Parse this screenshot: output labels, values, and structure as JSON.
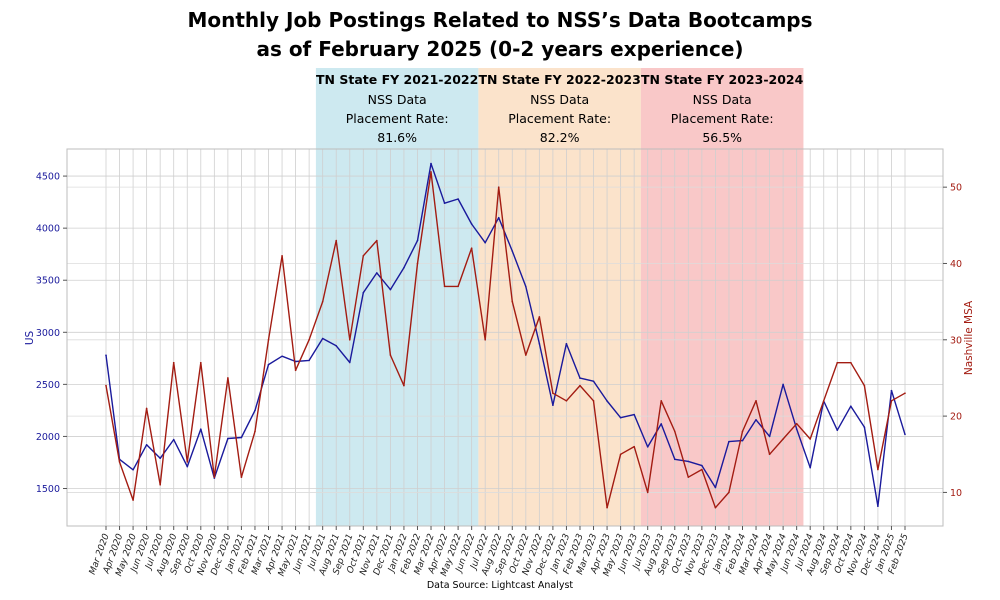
{
  "chart_data": {
    "type": "line",
    "title_line1": "Monthly Job Postings Related to NSS’s Data Bootcamps",
    "title_line2": "as of February 2025 (0-2 years experience)",
    "source": "Data Source: Lightcast Analyst",
    "ylabel_left": "US",
    "ylabel_right": "Nashville MSA",
    "ylim_left": [
      1140,
      4760
    ],
    "ylim_right": [
      5.6,
      55
    ],
    "yticks_left": [
      1500,
      2000,
      2500,
      3000,
      3500,
      4000,
      4500
    ],
    "yticks_right": [
      10,
      20,
      30,
      40,
      50
    ],
    "grid": true,
    "colors": {
      "us": "#1a1a9c",
      "msa": "#a31c12"
    },
    "x": [
      "Mar 2020",
      "Apr 2020",
      "May 2020",
      "Jun 2020",
      "Jul 2020",
      "Aug 2020",
      "Sep 2020",
      "Oct 2020",
      "Nov 2020",
      "Dec 2020",
      "Jan 2021",
      "Feb 2021",
      "Mar 2021",
      "Apr 2021",
      "May 2021",
      "Jun 2021",
      "Jul 2021",
      "Aug 2021",
      "Sep 2021",
      "Oct 2021",
      "Nov 2021",
      "Dec 2021",
      "Jan 2022",
      "Feb 2022",
      "Mar 2022",
      "Apr 2022",
      "May 2022",
      "Jun 2022",
      "Jul 2022",
      "Aug 2022",
      "Sep 2022",
      "Oct 2022",
      "Nov 2022",
      "Dec 2022",
      "Jan 2023",
      "Feb 2023",
      "Mar 2023",
      "Apr 2023",
      "May 2023",
      "Jun 2023",
      "Jul 2023",
      "Aug 2023",
      "Sep 2023",
      "Oct 2023",
      "Nov 2023",
      "Dec 2023",
      "Jan 2024",
      "Feb 2024",
      "Mar 2024",
      "Apr 2024",
      "May 2024",
      "Jun 2024",
      "Jul 2024",
      "Aug 2024",
      "Sep 2024",
      "Oct 2024",
      "Nov 2024",
      "Dec 2024",
      "Jan 2025",
      "Feb 2025"
    ],
    "series": [
      {
        "name": "US",
        "axis": "left",
        "values": [
          2780,
          1780,
          1680,
          1920,
          1790,
          1970,
          1710,
          2070,
          1600,
          1980,
          1990,
          2250,
          2690,
          2770,
          2720,
          2730,
          2940,
          2870,
          2710,
          3380,
          3570,
          3410,
          3620,
          3880,
          4620,
          4240,
          4280,
          4040,
          3860,
          4100,
          3780,
          3440,
          2890,
          2300,
          2890,
          2560,
          2530,
          2340,
          2180,
          2210,
          1900,
          2120,
          1780,
          1760,
          1720,
          1510,
          1950,
          1960,
          2160,
          2000,
          2500,
          2070,
          1700,
          2340,
          2060,
          2290,
          2090,
          1330,
          2440,
          2020
        ]
      },
      {
        "name": "Nashville MSA",
        "axis": "right",
        "values": [
          24,
          14,
          9,
          21,
          11,
          27,
          14,
          27,
          12,
          25,
          12,
          18,
          30,
          41,
          26,
          30,
          35,
          43,
          30,
          41,
          43,
          28,
          24,
          40,
          52,
          37,
          37,
          42,
          30,
          50,
          35,
          28,
          33,
          23,
          22,
          24,
          22,
          8,
          15,
          16,
          10,
          22,
          18,
          12,
          13,
          8,
          10,
          18,
          22,
          15,
          17,
          19,
          17,
          22,
          27,
          27,
          24,
          13,
          22,
          23
        ]
      }
    ],
    "bands": [
      {
        "title": "TN State FY 2021-2022",
        "line2": "NSS Data",
        "line3": "Placement Rate:",
        "rate": "81.6%",
        "start": "Jul 2021",
        "end": "Jun 2022",
        "color": "#cde9f0"
      },
      {
        "title": "TN State FY 2022-2023",
        "line2": "NSS Data",
        "line3": "Placement Rate:",
        "rate": "82.2%",
        "start": "Jul 2022",
        "end": "Jun 2023",
        "color": "#fbe3cb"
      },
      {
        "title": "TN State FY 2023-2024",
        "line2": "NSS Data",
        "line3": "Placement Rate:",
        "rate": "56.5%",
        "start": "Jul 2023",
        "end": "Jun 2024",
        "color": "#f9c8c8"
      }
    ]
  }
}
